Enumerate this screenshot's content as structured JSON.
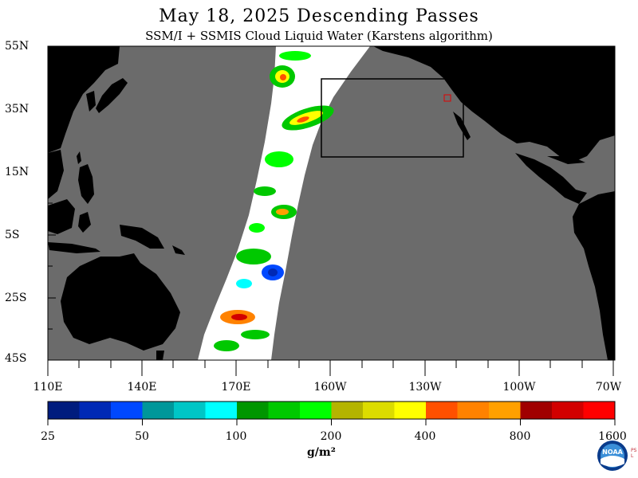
{
  "title": "May 18, 2025  Descending Passes",
  "subtitle": "SSM/I + SSMIS Cloud Liquid Water (Karstens algorithm)",
  "lat_labels": [
    "55N",
    "35N",
    "15N",
    "5S",
    "25S",
    "45S"
  ],
  "lon_labels": [
    "110E",
    "140E",
    "170E",
    "160W",
    "130W",
    "100W",
    "70W"
  ],
  "colorbar": {
    "tick_labels": [
      "25",
      "50",
      "100",
      "200",
      "400",
      "800",
      "1600"
    ],
    "unit": "g/m²",
    "colors": [
      "#001c7e",
      "#0029b5",
      "#0048ff",
      "#00979a",
      "#00c6c6",
      "#00ffff",
      "#009600",
      "#00c800",
      "#00ff00",
      "#b4b400",
      "#dcdc00",
      "#ffff00",
      "#ff5000",
      "#ff8200",
      "#ffa000",
      "#a00000",
      "#d20000",
      "#ff0000"
    ]
  },
  "colors": {
    "ocean": "#6b6b6b",
    "land": "#000000",
    "swath": "#ffffff",
    "box": "#000000",
    "marker": "#e00000"
  },
  "logo_text": "NOAA",
  "logo_side_text": "PSL"
}
